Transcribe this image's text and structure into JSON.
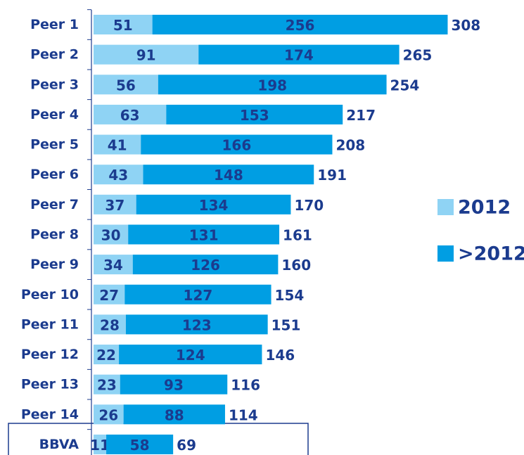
{
  "chart_data": {
    "type": "bar",
    "orientation": "horizontal",
    "stacked": true,
    "categories": [
      "Peer 1",
      "Peer 2",
      "Peer 3",
      "Peer 4",
      "Peer 5",
      "Peer 6",
      "Peer 7",
      "Peer 8",
      "Peer 9",
      "Peer 10",
      "Peer 11",
      "Peer 12",
      "Peer 13",
      "Peer 14",
      "BBVA"
    ],
    "series": [
      {
        "name": "2012",
        "color": "#8fd3f4",
        "values": [
          51,
          91,
          56,
          63,
          41,
          43,
          37,
          30,
          34,
          27,
          28,
          22,
          23,
          26,
          11
        ]
      },
      {
        "name": ">2012",
        "color": "#009ee3",
        "values": [
          256,
          174,
          198,
          153,
          166,
          148,
          134,
          131,
          126,
          127,
          123,
          124,
          93,
          88,
          58
        ]
      }
    ],
    "totals": [
      308,
      265,
      254,
      217,
      208,
      191,
      170,
      161,
      160,
      154,
      151,
      146,
      116,
      114,
      69
    ],
    "highlight": "BBVA",
    "legend": "right"
  }
}
